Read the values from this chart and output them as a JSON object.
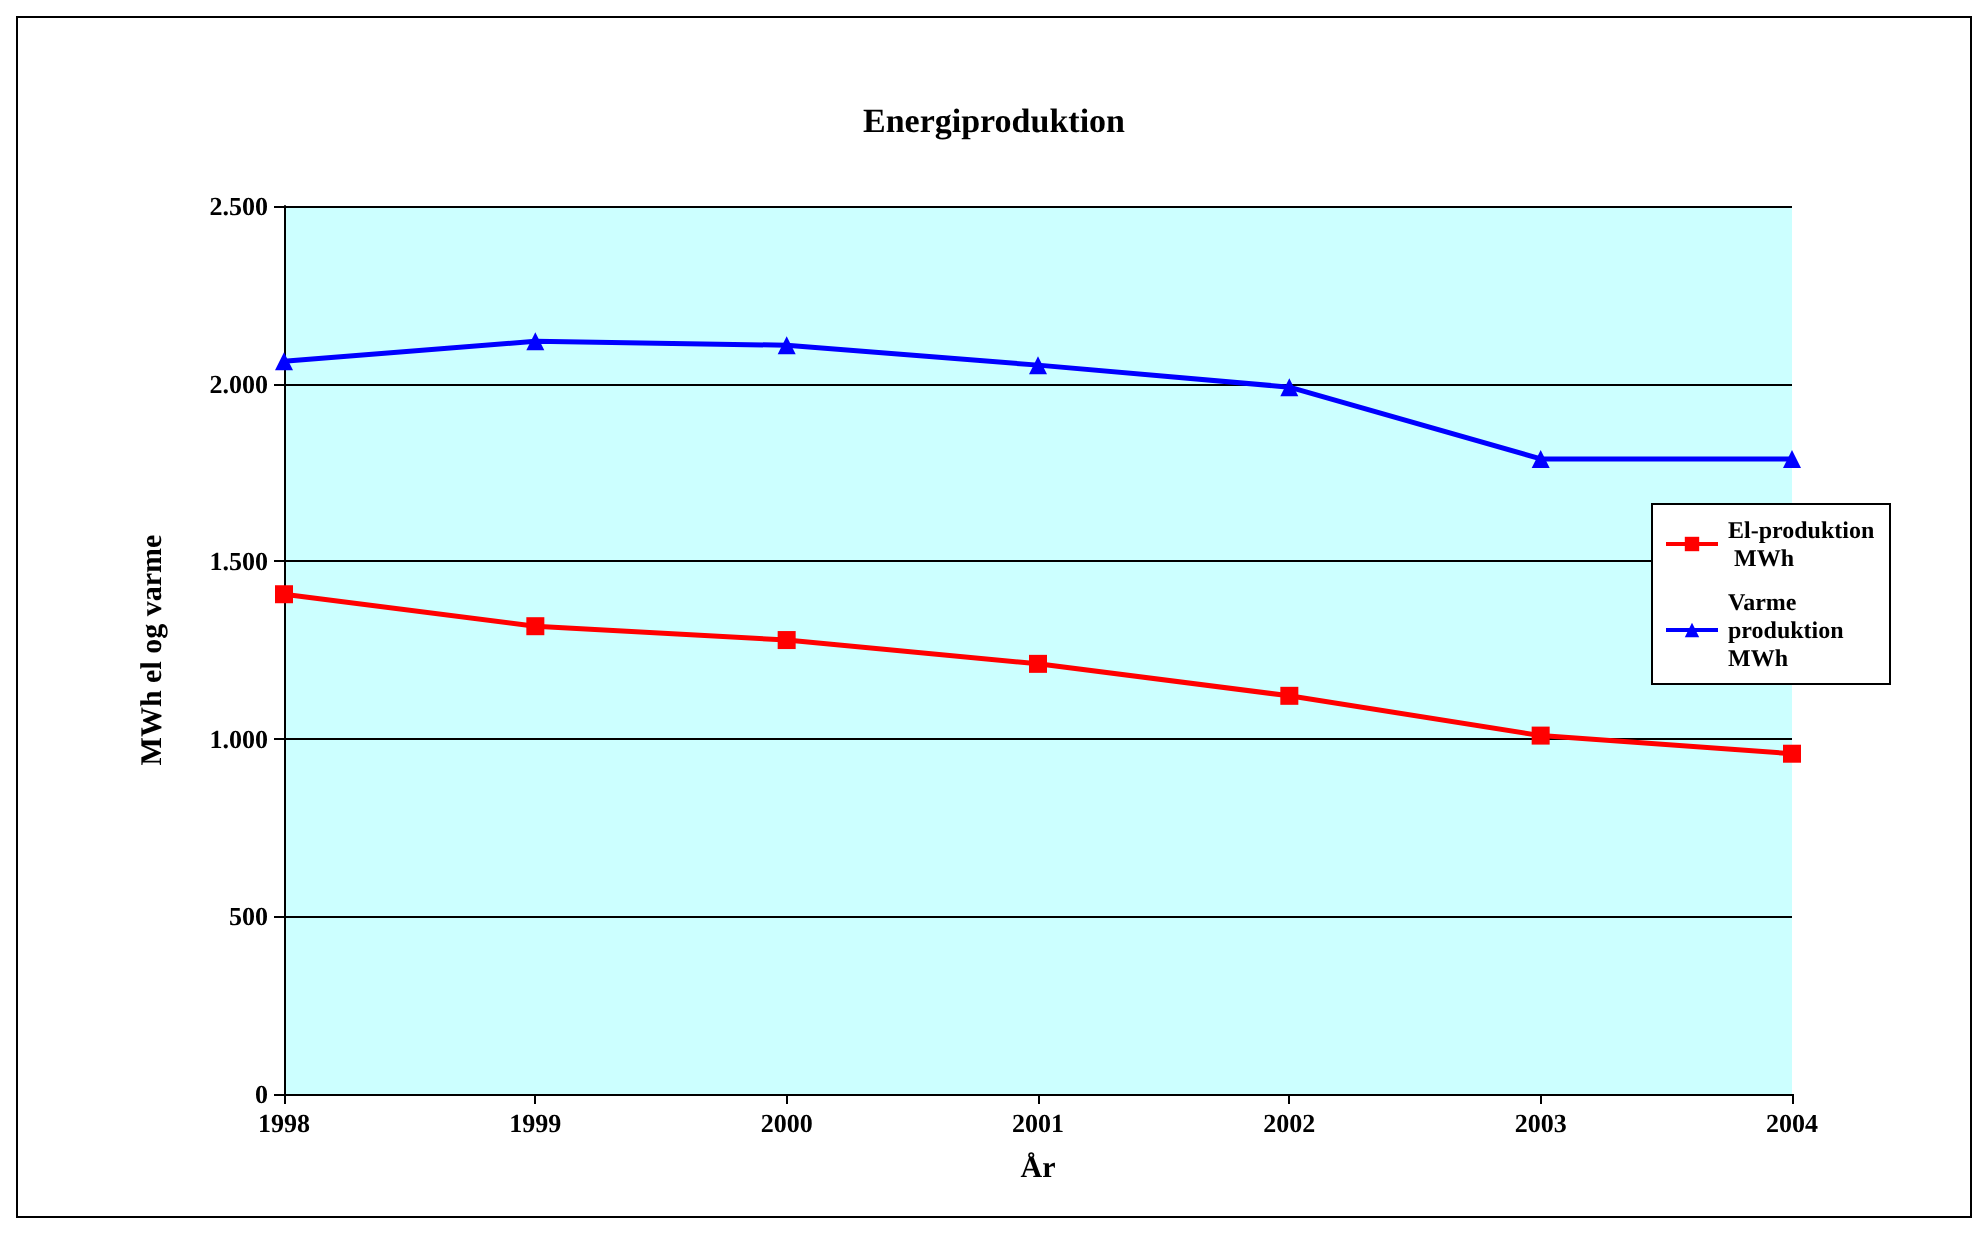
{
  "chart_data": {
    "type": "line",
    "title": "Energiproduktion",
    "xlabel": "År",
    "ylabel": "MWh el og varme",
    "categories": [
      "1998",
      "1999",
      "2000",
      "2001",
      "2002",
      "2003",
      "2004"
    ],
    "series": [
      {
        "name": "El-produktion MWh",
        "color": "#ff0000",
        "marker": "square",
        "values": [
          1407,
          1317,
          1278,
          1211,
          1121,
          1009,
          958
        ]
      },
      {
        "name": "Varme produktion MWh",
        "color": "#0000ff",
        "marker": "triangle",
        "values": [
          2063,
          2119,
          2108,
          2052,
          1990,
          1788,
          1788
        ]
      }
    ],
    "ylim": [
      0,
      2500
    ],
    "yticks": [
      0,
      500,
      {
        "value": 1000,
        "label": "1.000"
      },
      {
        "value": 1500,
        "label": "1.500"
      },
      {
        "value": 2000,
        "label": "2.000"
      },
      {
        "value": 2500,
        "label": "2.500"
      }
    ],
    "grid": "y",
    "legend": "right"
  }
}
